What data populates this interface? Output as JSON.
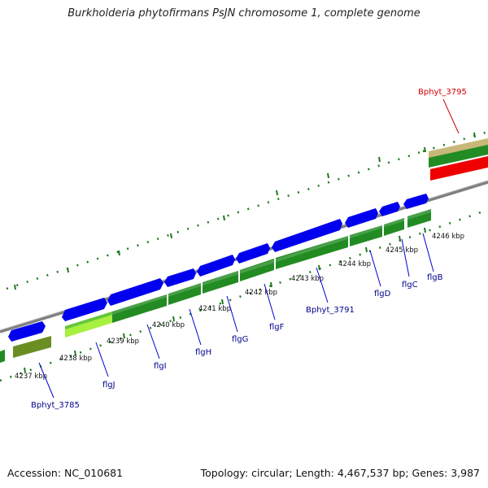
{
  "title": "Burkholderia phytofirmans PsJN chromosome 1, complete genome",
  "accession_text": "Accession: NC_010681",
  "summary_text": "Topology: circular; Length: 4,467,537 bp; Genes: 3,987",
  "colors": {
    "backbone": "#808080",
    "forward_gene": "#0000ee",
    "cds": "#228b22",
    "highlight_cds": "#a8f040",
    "olive_cds": "#6b8e23",
    "rna": "#ee0000",
    "ruler_tick": "#1e7a1e",
    "gene_label": "#00008b",
    "highlight_label": "#cc0000"
  },
  "ruler_labels": [
    "4237 kbp",
    "4238 kbp",
    "4239 kbp",
    "4240 kbp",
    "4241 kbp",
    "4242 kbp",
    "4243 kbp",
    "4244 kbp",
    "4245 kbp",
    "4246 kbp"
  ],
  "gene_labels": [
    {
      "name": "Bphyt_3785"
    },
    {
      "name": "flgJ"
    },
    {
      "name": "flgI"
    },
    {
      "name": "flgH"
    },
    {
      "name": "flgG"
    },
    {
      "name": "flgF"
    },
    {
      "name": "Bphyt_3791"
    },
    {
      "name": "flgD"
    },
    {
      "name": "flgC"
    },
    {
      "name": "flgB"
    },
    {
      "name": "Bphyt_3795"
    }
  ]
}
